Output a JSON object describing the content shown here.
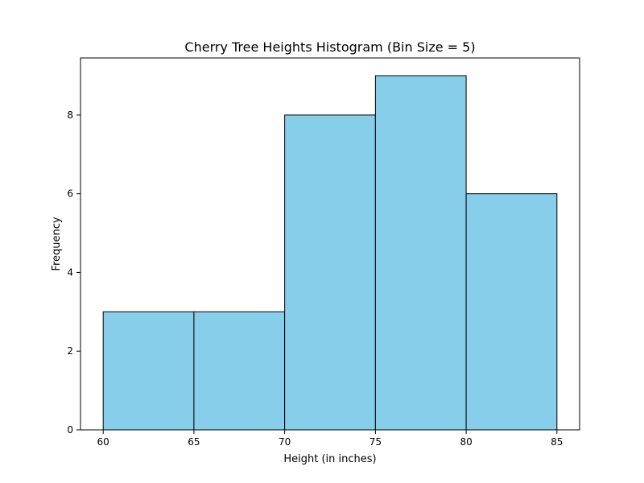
{
  "chart_data": {
    "type": "bar",
    "title": "Cherry Tree Heights Histogram (Bin Size = 5)",
    "xlabel": "Height (in inches)",
    "ylabel": "Frequency",
    "bins": [
      {
        "start": 60,
        "end": 65,
        "count": 3
      },
      {
        "start": 65,
        "end": 70,
        "count": 3
      },
      {
        "start": 70,
        "end": 75,
        "count": 8
      },
      {
        "start": 75,
        "end": 80,
        "count": 9
      },
      {
        "start": 80,
        "end": 85,
        "count": 6
      }
    ],
    "xlim": [
      58.75,
      86.25
    ],
    "ylim": [
      0,
      9.45
    ],
    "xticks": [
      60,
      65,
      70,
      75,
      80,
      85
    ],
    "yticks": [
      0,
      2,
      4,
      6,
      8
    ],
    "bar_color": "#87ceeb",
    "edge_color": "#000000",
    "grid": false,
    "legend": "none"
  }
}
